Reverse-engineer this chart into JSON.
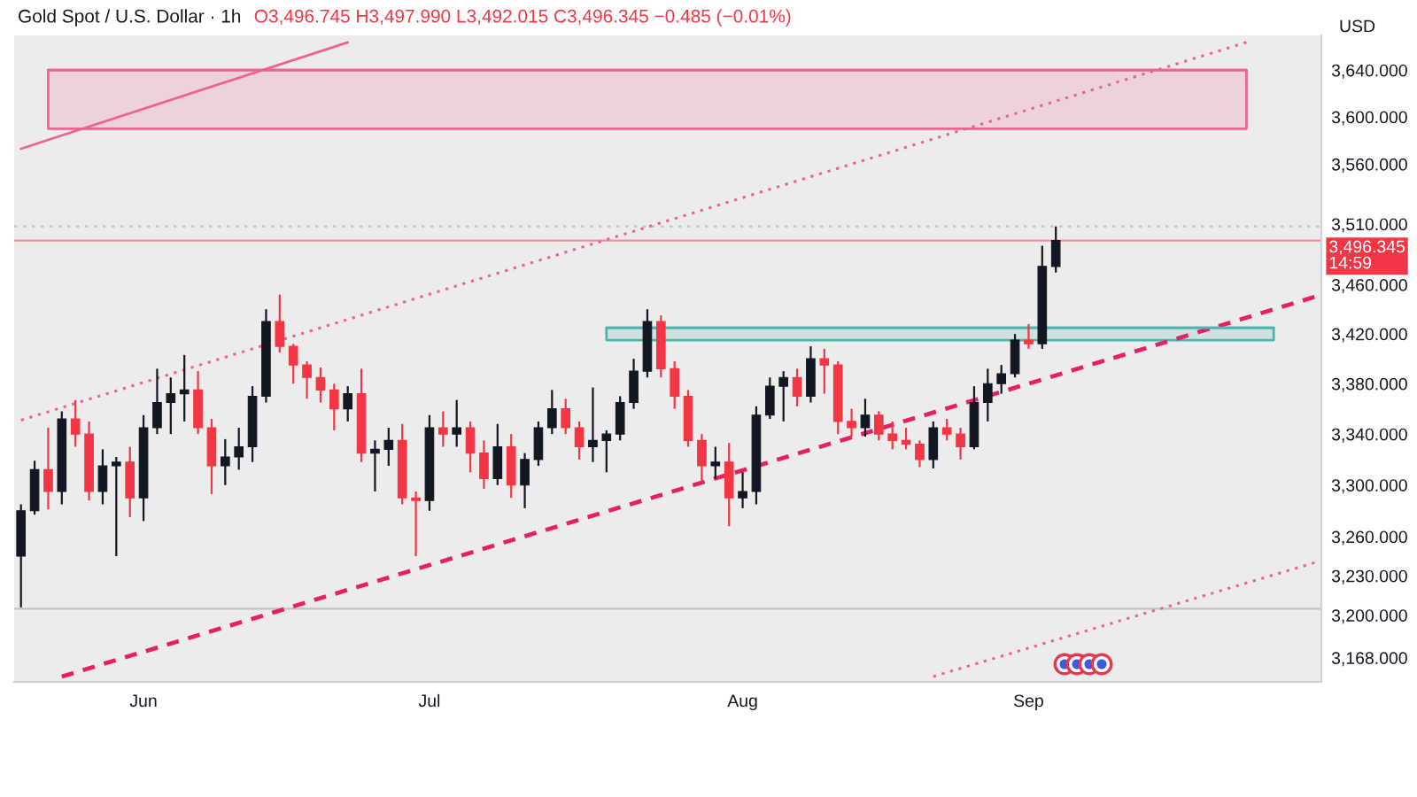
{
  "chart_data": {
    "type": "candlestick",
    "title": "Gold Spot / U.S. Dollar · 1h",
    "subtitle": "O3,496.745 H3,497.990 L3,492.015 C3,496.345 −0.485 (−0.01%)",
    "ylabel": "USD",
    "categories": [
      null,
      null,
      null,
      null,
      null,
      null,
      null,
      null,
      null,
      "Jun",
      null,
      null,
      null,
      null,
      null,
      null,
      null,
      null,
      null,
      null,
      null,
      null,
      null,
      null,
      null,
      null,
      null,
      null,
      null,
      null,
      "Jul",
      null,
      null,
      null,
      null,
      null,
      null,
      null,
      null,
      null,
      null,
      null,
      null,
      null,
      null,
      null,
      null,
      null,
      null,
      null,
      null,
      null,
      null,
      "Aug",
      null,
      null,
      null,
      null,
      null,
      null,
      null,
      null,
      null,
      null,
      null,
      null,
      null,
      null,
      null,
      null,
      null,
      null,
      null,
      null,
      "Sep",
      null,
      null,
      null,
      null,
      null,
      null,
      null,
      null,
      null,
      null,
      null,
      null,
      null,
      null,
      null,
      null,
      null,
      null,
      null,
      null,
      null
    ],
    "ohlc": [
      [
        3245,
        3285,
        3206,
        3280
      ],
      [
        3280,
        3319,
        3277,
        3312
      ],
      [
        3312,
        3345,
        3281,
        3295
      ],
      [
        3295,
        3358,
        3285,
        3352
      ],
      [
        3352,
        3367,
        3330,
        3340
      ],
      [
        3340,
        3350,
        3288,
        3295
      ],
      [
        3295,
        3328,
        3285,
        3315
      ],
      [
        3315,
        3322,
        3245,
        3318
      ],
      [
        3318,
        3330,
        3275,
        3290
      ],
      [
        3290,
        3355,
        3272,
        3345
      ],
      [
        3345,
        3392,
        3340,
        3365
      ],
      [
        3365,
        3385,
        3340,
        3372
      ],
      [
        3372,
        3403,
        3350,
        3375
      ],
      [
        3375,
        3390,
        3340,
        3345
      ],
      [
        3345,
        3352,
        3293,
        3315
      ],
      [
        3315,
        3336,
        3300,
        3322
      ],
      [
        3322,
        3345,
        3312,
        3330
      ],
      [
        3330,
        3378,
        3318,
        3370
      ],
      [
        3370,
        3440,
        3365,
        3430
      ],
      [
        3430,
        3452,
        3405,
        3410
      ],
      [
        3410,
        3412,
        3380,
        3395
      ],
      [
        3395,
        3398,
        3368,
        3385
      ],
      [
        3385,
        3393,
        3365,
        3375
      ],
      [
        3375,
        3380,
        3343,
        3360
      ],
      [
        3360,
        3378,
        3350,
        3372
      ],
      [
        3372,
        3392,
        3318,
        3325
      ],
      [
        3325,
        3335,
        3295,
        3328
      ],
      [
        3328,
        3345,
        3315,
        3335
      ],
      [
        3335,
        3348,
        3285,
        3290
      ],
      [
        3290,
        3295,
        3245,
        3288
      ],
      [
        3288,
        3355,
        3280,
        3345
      ],
      [
        3345,
        3358,
        3330,
        3340
      ],
      [
        3340,
        3367,
        3330,
        3345
      ],
      [
        3345,
        3350,
        3310,
        3325
      ],
      [
        3325,
        3335,
        3297,
        3305
      ],
      [
        3305,
        3348,
        3300,
        3330
      ],
      [
        3330,
        3340,
        3290,
        3300
      ],
      [
        3300,
        3325,
        3282,
        3320
      ],
      [
        3320,
        3350,
        3315,
        3345
      ],
      [
        3345,
        3375,
        3340,
        3360
      ],
      [
        3360,
        3368,
        3340,
        3345
      ],
      [
        3345,
        3350,
        3320,
        3330
      ],
      [
        3330,
        3377,
        3318,
        3335
      ],
      [
        3335,
        3343,
        3310,
        3340
      ],
      [
        3340,
        3370,
        3335,
        3365
      ],
      [
        3365,
        3400,
        3360,
        3390
      ],
      [
        3390,
        3440,
        3385,
        3430
      ],
      [
        3430,
        3435,
        3385,
        3392
      ],
      [
        3392,
        3398,
        3360,
        3370
      ],
      [
        3370,
        3375,
        3330,
        3335
      ],
      [
        3335,
        3340,
        3302,
        3315
      ],
      [
        3315,
        3330,
        3305,
        3318
      ],
      [
        3318,
        3333,
        3268,
        3290
      ],
      [
        3290,
        3310,
        3282,
        3295
      ],
      [
        3295,
        3362,
        3285,
        3355
      ],
      [
        3355,
        3385,
        3352,
        3378
      ],
      [
        3378,
        3390,
        3350,
        3385
      ],
      [
        3385,
        3392,
        3362,
        3370
      ],
      [
        3370,
        3410,
        3365,
        3400
      ],
      [
        3400,
        3408,
        3372,
        3395
      ],
      [
        3395,
        3398,
        3340,
        3350
      ],
      [
        3350,
        3360,
        3338,
        3345
      ],
      [
        3345,
        3368,
        3338,
        3355
      ],
      [
        3355,
        3358,
        3335,
        3340
      ],
      [
        3340,
        3350,
        3328,
        3335
      ],
      [
        3335,
        3345,
        3328,
        3332
      ],
      [
        3332,
        3335,
        3314,
        3320
      ],
      [
        3320,
        3350,
        3313,
        3345
      ],
      [
        3345,
        3352,
        3335,
        3340
      ],
      [
        3340,
        3345,
        3320,
        3330
      ],
      [
        3330,
        3378,
        3328,
        3365
      ],
      [
        3365,
        3392,
        3350,
        3380
      ],
      [
        3380,
        3395,
        3372,
        3388
      ],
      [
        3388,
        3420,
        3385,
        3415
      ],
      [
        3415,
        3428,
        3408,
        3412
      ],
      [
        3412,
        3492,
        3408,
        3475
      ],
      [
        3475,
        3508,
        3470,
        3496.345
      ],
      null,
      null,
      null,
      null,
      null,
      null,
      null,
      null,
      null,
      null,
      null,
      null,
      null,
      null,
      null,
      null,
      null,
      null,
      null
    ],
    "colors": [
      "#131722",
      "#131722",
      "#f23645",
      "#131722",
      "#f23645",
      "#f23645",
      "#131722",
      "#131722",
      "#f23645",
      "#131722",
      "#131722",
      "#131722",
      "#131722",
      "#f23645",
      "#f23645",
      "#131722",
      "#131722",
      "#131722",
      "#131722",
      "#f23645",
      "#f23645",
      "#f23645",
      "#f23645",
      "#f23645",
      "#131722",
      "#f23645",
      "#131722",
      "#131722",
      "#f23645",
      "#f23645",
      "#131722",
      "#f23645",
      "#131722",
      "#f23645",
      "#f23645",
      "#131722",
      "#f23645",
      "#131722",
      "#131722",
      "#131722",
      "#f23645",
      "#f23645",
      "#131722",
      "#131722",
      "#131722",
      "#131722",
      "#131722",
      "#f23645",
      "#f23645",
      "#f23645",
      "#f23645",
      "#131722",
      "#f23645",
      "#131722",
      "#131722",
      "#131722",
      "#131722",
      "#f23645",
      "#131722",
      "#f23645",
      "#f23645",
      "#f23645",
      "#131722",
      "#f23645",
      "#f23645",
      "#f23645",
      "#f23645",
      "#131722",
      "#f23645",
      "#f23645",
      "#131722",
      "#131722",
      "#131722",
      "#131722",
      "#f23645",
      "#131722",
      "#131722",
      null,
      null,
      null,
      null,
      null,
      null,
      null,
      null,
      null,
      null,
      null,
      null,
      null,
      null,
      null,
      null,
      null,
      null,
      null
    ],
    "series": [
      {
        "type": "line",
        "color": "#f06292",
        "line_style": "solid",
        "values": [
          3573,
          null,
          null,
          null,
          null,
          null,
          null,
          null,
          null,
          null,
          null,
          null,
          null,
          null,
          null,
          null,
          null,
          null,
          null,
          null,
          null,
          null,
          null,
          null,
          3664,
          null,
          null,
          null,
          null,
          null,
          null,
          null,
          null,
          null,
          null,
          null,
          null,
          null,
          null,
          null,
          null,
          null,
          null,
          null,
          null,
          null,
          null,
          null,
          null,
          null,
          null,
          null,
          null,
          null,
          null,
          null,
          null,
          null,
          null,
          null,
          null,
          null,
          null,
          null,
          null,
          null,
          null,
          null,
          null,
          null,
          null,
          null,
          null,
          null,
          null,
          null,
          null,
          null,
          null,
          null,
          null,
          null,
          null,
          null,
          null,
          null,
          null,
          null,
          null,
          null,
          null,
          null,
          null,
          null,
          null,
          null
        ]
      },
      {
        "type": "line",
        "color": "#f06292",
        "line_style": "dotted",
        "values": [
          3351,
          null,
          null,
          null,
          null,
          null,
          null,
          null,
          null,
          null,
          null,
          null,
          null,
          null,
          null,
          null,
          null,
          null,
          null,
          null,
          null,
          null,
          null,
          null,
          null,
          null,
          null,
          null,
          null,
          null,
          null,
          null,
          null,
          null,
          null,
          null,
          null,
          null,
          null,
          null,
          null,
          null,
          null,
          null,
          null,
          null,
          null,
          null,
          null,
          null,
          null,
          null,
          null,
          null,
          null,
          null,
          null,
          null,
          null,
          null,
          null,
          null,
          null,
          null,
          null,
          null,
          null,
          null,
          null,
          null,
          null,
          null,
          null,
          null,
          null,
          null,
          null,
          null,
          null,
          null,
          null,
          null,
          null,
          null,
          null,
          null,
          null,
          null,
          null,
          null,
          3664,
          null,
          null,
          null,
          null,
          null
        ]
      },
      {
        "type": "line",
        "color": "#e91e63",
        "line_style": "dashed",
        "values": [
          null,
          null,
          null,
          3154,
          null,
          null,
          null,
          null,
          null,
          null,
          null,
          null,
          null,
          null,
          null,
          null,
          null,
          null,
          null,
          null,
          null,
          null,
          null,
          null,
          null,
          null,
          null,
          null,
          null,
          null,
          null,
          null,
          null,
          null,
          null,
          null,
          null,
          null,
          null,
          null,
          null,
          null,
          null,
          null,
          null,
          null,
          null,
          null,
          null,
          null,
          null,
          null,
          null,
          null,
          null,
          null,
          null,
          null,
          null,
          null,
          null,
          null,
          null,
          null,
          null,
          null,
          null,
          null,
          null,
          null,
          null,
          null,
          null,
          null,
          null,
          null,
          null,
          null,
          null,
          null,
          null,
          null,
          null,
          null,
          null,
          null,
          null,
          null,
          null,
          null,
          null,
          null,
          null,
          null,
          null,
          3450
        ]
      },
      {
        "type": "line",
        "color": "#f06292",
        "line_style": "dotted",
        "values": [
          null,
          null,
          null,
          null,
          null,
          null,
          null,
          null,
          null,
          null,
          null,
          null,
          null,
          null,
          null,
          null,
          null,
          null,
          null,
          null,
          null,
          null,
          null,
          null,
          null,
          null,
          null,
          null,
          null,
          null,
          null,
          null,
          null,
          null,
          null,
          null,
          null,
          null,
          null,
          null,
          null,
          null,
          null,
          null,
          null,
          null,
          null,
          null,
          null,
          null,
          null,
          null,
          null,
          null,
          null,
          null,
          null,
          null,
          null,
          null,
          null,
          null,
          null,
          null,
          null,
          null,
          null,
          3154,
          null,
          null,
          null,
          null,
          null,
          null,
          null,
          null,
          null,
          null,
          null,
          null,
          null,
          null,
          null,
          null,
          null,
          null,
          null,
          null,
          null,
          null,
          null,
          null,
          null,
          null,
          null,
          3240
        ]
      },
      {
        "type": "line",
        "color": "#f06292",
        "line_style": "solid",
        "values": [
          null,
          null,
          3640,
          null,
          null,
          null,
          null,
          null,
          null,
          null,
          null,
          null,
          null,
          null,
          null,
          null,
          null,
          null,
          null,
          null,
          null,
          null,
          null,
          null,
          null,
          null,
          null,
          null,
          null,
          null,
          null,
          null,
          null,
          null,
          null,
          null,
          null,
          null,
          null,
          null,
          null,
          null,
          null,
          null,
          null,
          null,
          null,
          null,
          null,
          null,
          null,
          null,
          null,
          null,
          null,
          null,
          null,
          null,
          null,
          null,
          null,
          null,
          null,
          null,
          null,
          null,
          null,
          null,
          null,
          null,
          null,
          null,
          null,
          null,
          null,
          null,
          null,
          null,
          null,
          null,
          null,
          null,
          null,
          null,
          null,
          null,
          null,
          null,
          null,
          null,
          3640,
          null,
          null,
          null,
          null,
          null
        ],
        "upper": [
          null,
          null,
          3640,
          null,
          null,
          null,
          null,
          null,
          null,
          null,
          null,
          null,
          null,
          null,
          null,
          null,
          null,
          null,
          null,
          null,
          null,
          null,
          null,
          null,
          null,
          null,
          null,
          null,
          null,
          null,
          null,
          null,
          null,
          null,
          null,
          null,
          null,
          null,
          null,
          null,
          null,
          null,
          null,
          null,
          null,
          null,
          null,
          null,
          null,
          null,
          null,
          null,
          null,
          null,
          null,
          null,
          null,
          null,
          null,
          null,
          null,
          null,
          null,
          null,
          null,
          null,
          null,
          null,
          null,
          null,
          null,
          null,
          null,
          null,
          null,
          null,
          null,
          null,
          null,
          null,
          null,
          null,
          null,
          null,
          null,
          null,
          null,
          null,
          null,
          null,
          3640,
          null,
          null,
          null,
          null,
          null
        ],
        "lower": [
          null,
          null,
          3590,
          null,
          null,
          null,
          null,
          null,
          null,
          null,
          null,
          null,
          null,
          null,
          null,
          null,
          null,
          null,
          null,
          null,
          null,
          null,
          null,
          null,
          null,
          null,
          null,
          null,
          null,
          null,
          null,
          null,
          null,
          null,
          null,
          null,
          null,
          null,
          null,
          null,
          null,
          null,
          null,
          null,
          null,
          null,
          null,
          null,
          null,
          null,
          null,
          null,
          null,
          null,
          null,
          null,
          null,
          null,
          null,
          null,
          null,
          null,
          null,
          null,
          null,
          null,
          null,
          null,
          null,
          null,
          null,
          null,
          null,
          null,
          null,
          null,
          null,
          null,
          null,
          null,
          null,
          null,
          null,
          null,
          null,
          null,
          null,
          null,
          null,
          null,
          3590,
          null,
          null,
          null,
          null,
          null
        ]
      },
      {
        "type": "line",
        "color": "#4db6ac",
        "line_style": "solid",
        "values": [
          null,
          null,
          null,
          null,
          null,
          null,
          null,
          null,
          null,
          null,
          null,
          null,
          null,
          null,
          null,
          null,
          null,
          null,
          null,
          null,
          null,
          null,
          null,
          null,
          null,
          null,
          null,
          null,
          null,
          null,
          null,
          null,
          null,
          null,
          null,
          null,
          null,
          null,
          null,
          null,
          null,
          null,
          null,
          3425,
          null,
          null,
          null,
          null,
          null,
          null,
          null,
          null,
          null,
          null,
          null,
          null,
          null,
          null,
          null,
          null,
          null,
          null,
          null,
          null,
          null,
          null,
          null,
          null,
          null,
          null,
          null,
          null,
          null,
          null,
          null,
          null,
          null,
          null,
          null,
          null,
          null,
          null,
          null,
          null,
          null,
          null,
          null,
          null,
          null,
          null,
          null,
          null,
          3425,
          null,
          null,
          null
        ],
        "upper": [
          null,
          null,
          null,
          null,
          null,
          null,
          null,
          null,
          null,
          null,
          null,
          null,
          null,
          null,
          null,
          null,
          null,
          null,
          null,
          null,
          null,
          null,
          null,
          null,
          null,
          null,
          null,
          null,
          null,
          null,
          null,
          null,
          null,
          null,
          null,
          null,
          null,
          null,
          null,
          null,
          null,
          null,
          null,
          3425,
          null,
          null,
          null,
          null,
          null,
          null,
          null,
          null,
          null,
          null,
          null,
          null,
          null,
          null,
          null,
          null,
          null,
          null,
          null,
          null,
          null,
          null,
          null,
          null,
          null,
          null,
          null,
          null,
          null,
          null,
          null,
          null,
          null,
          null,
          null,
          null,
          null,
          null,
          null,
          null,
          null,
          null,
          null,
          null,
          null,
          null,
          null,
          null,
          3425,
          null,
          null,
          null
        ],
        "lower": [
          null,
          null,
          null,
          null,
          null,
          null,
          null,
          null,
          null,
          null,
          null,
          null,
          null,
          null,
          null,
          null,
          null,
          null,
          null,
          null,
          null,
          null,
          null,
          null,
          null,
          null,
          null,
          null,
          null,
          null,
          null,
          null,
          null,
          null,
          null,
          null,
          null,
          null,
          null,
          null,
          null,
          null,
          null,
          3415,
          null,
          null,
          null,
          null,
          null,
          null,
          null,
          null,
          null,
          null,
          null,
          null,
          null,
          null,
          null,
          null,
          null,
          null,
          null,
          null,
          null,
          null,
          null,
          null,
          null,
          null,
          null,
          null,
          null,
          null,
          null,
          null,
          null,
          null,
          null,
          null,
          null,
          null,
          null,
          null,
          null,
          null,
          null,
          null,
          null,
          null,
          null,
          null,
          3415,
          null,
          null,
          null
        ]
      }
    ],
    "ref_lines": [
      {
        "axis": "y",
        "value": 3508,
        "color": "#9598a1",
        "line_style": "dotted"
      },
      {
        "axis": "y",
        "value": 3205,
        "color": "#9598a1",
        "line_style": "solid"
      },
      {
        "axis": "y",
        "value": 3496.345,
        "label": "3,496.345\n14:59",
        "color": "#f23645",
        "line_style": "solid"
      }
    ],
    "log": "y",
    "ylim": [
      3150,
      3670
    ],
    "yticks": [
      {
        "value": 3168,
        "label": "3,168.000"
      },
      {
        "value": 3200,
        "label": "3,200.000"
      },
      {
        "value": 3230,
        "label": "3,230.000"
      },
      {
        "value": 3260,
        "label": "3,260.000"
      },
      {
        "value": 3300,
        "label": "3,300.000"
      },
      {
        "value": 3340,
        "label": "3,340.000"
      },
      {
        "value": 3380,
        "label": "3,380.000"
      },
      {
        "value": 3420,
        "label": "3,420.000"
      },
      {
        "value": 3460,
        "label": "3,460.000"
      },
      {
        "value": 3510,
        "label": "3,510.000"
      },
      {
        "value": 3560,
        "label": "3,560.000"
      },
      {
        "value": 3600,
        "label": "3,600.000"
      },
      {
        "value": 3640,
        "label": "3,640.000"
      }
    ]
  }
}
